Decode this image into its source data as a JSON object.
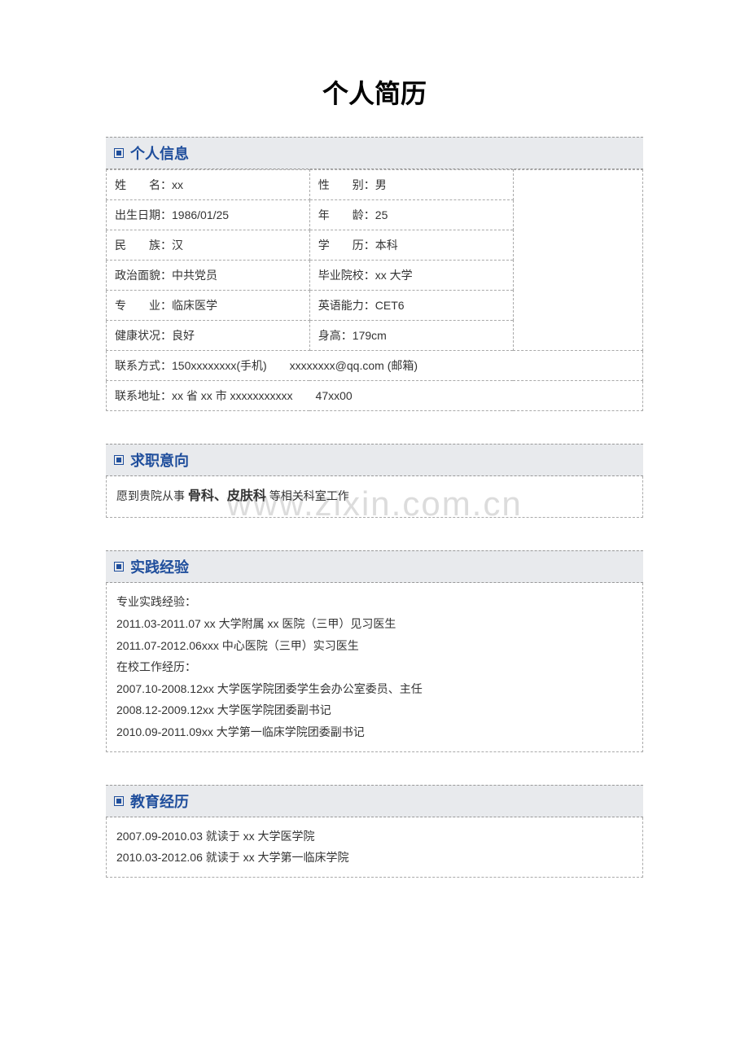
{
  "page": {
    "title": "个人简历",
    "watermark": "www.zixin.com.cn"
  },
  "sections": {
    "personal_info": {
      "header": "个人信息",
      "rows": [
        {
          "label1": "姓　　名：",
          "value1": "xx",
          "label2": "性　　别：",
          "value2": "男"
        },
        {
          "label1": "出生日期：",
          "value1": "1986/01/25",
          "label2": "年　　龄：",
          "value2": "25"
        },
        {
          "label1": "民　　族：",
          "value1": "汉",
          "label2": "学　　历：",
          "value2": "本科"
        },
        {
          "label1": "政治面貌：",
          "value1": "中共党员",
          "label2": "毕业院校：",
          "value2": "xx 大学"
        },
        {
          "label1": "专　　业：",
          "value1": "临床医学",
          "label2": "英语能力：",
          "value2": "CET6"
        },
        {
          "label1": "健康状况：",
          "value1": "良好",
          "label2": "身高：",
          "value2": "179cm"
        }
      ],
      "contact": "联系方式：150xxxxxxxx(手机)　　xxxxxxxx@qq.com (邮箱)",
      "address": "联系地址：xx 省 xx 市 xxxxxxxxxxx　　47xx00"
    },
    "job_intent": {
      "header": "求职意向",
      "prefix": "愿到贵院从事 ",
      "bold": "骨科、皮肤科",
      "suffix": " 等相关科室工作"
    },
    "experience": {
      "header": "实践经验",
      "lines": [
        "专业实践经验：",
        "2011.03-2011.07 xx 大学附属 xx 医院（三甲）见习医生",
        "2011.07-2012.06xxx 中心医院（三甲）实习医生",
        "在校工作经历：",
        "2007.10-2008.12xx 大学医学院团委学生会办公室委员、主任",
        "2008.12-2009.12xx 大学医学院团委副书记",
        "2010.09-2011.09xx 大学第一临床学院团委副书记"
      ]
    },
    "education": {
      "header": "教育经历",
      "lines": [
        "2007.09-2010.03 就读于 xx 大学医学院",
        "2010.03-2012.06 就读于 xx 大学第一临床学院"
      ]
    }
  },
  "styles": {
    "accent_color": "#1f4e9c",
    "header_bg": "#e8eaed",
    "border_color": "#aaaaaa",
    "text_color": "#333333",
    "title_fontsize": 32,
    "section_title_fontsize": 18,
    "body_fontsize": 14
  }
}
